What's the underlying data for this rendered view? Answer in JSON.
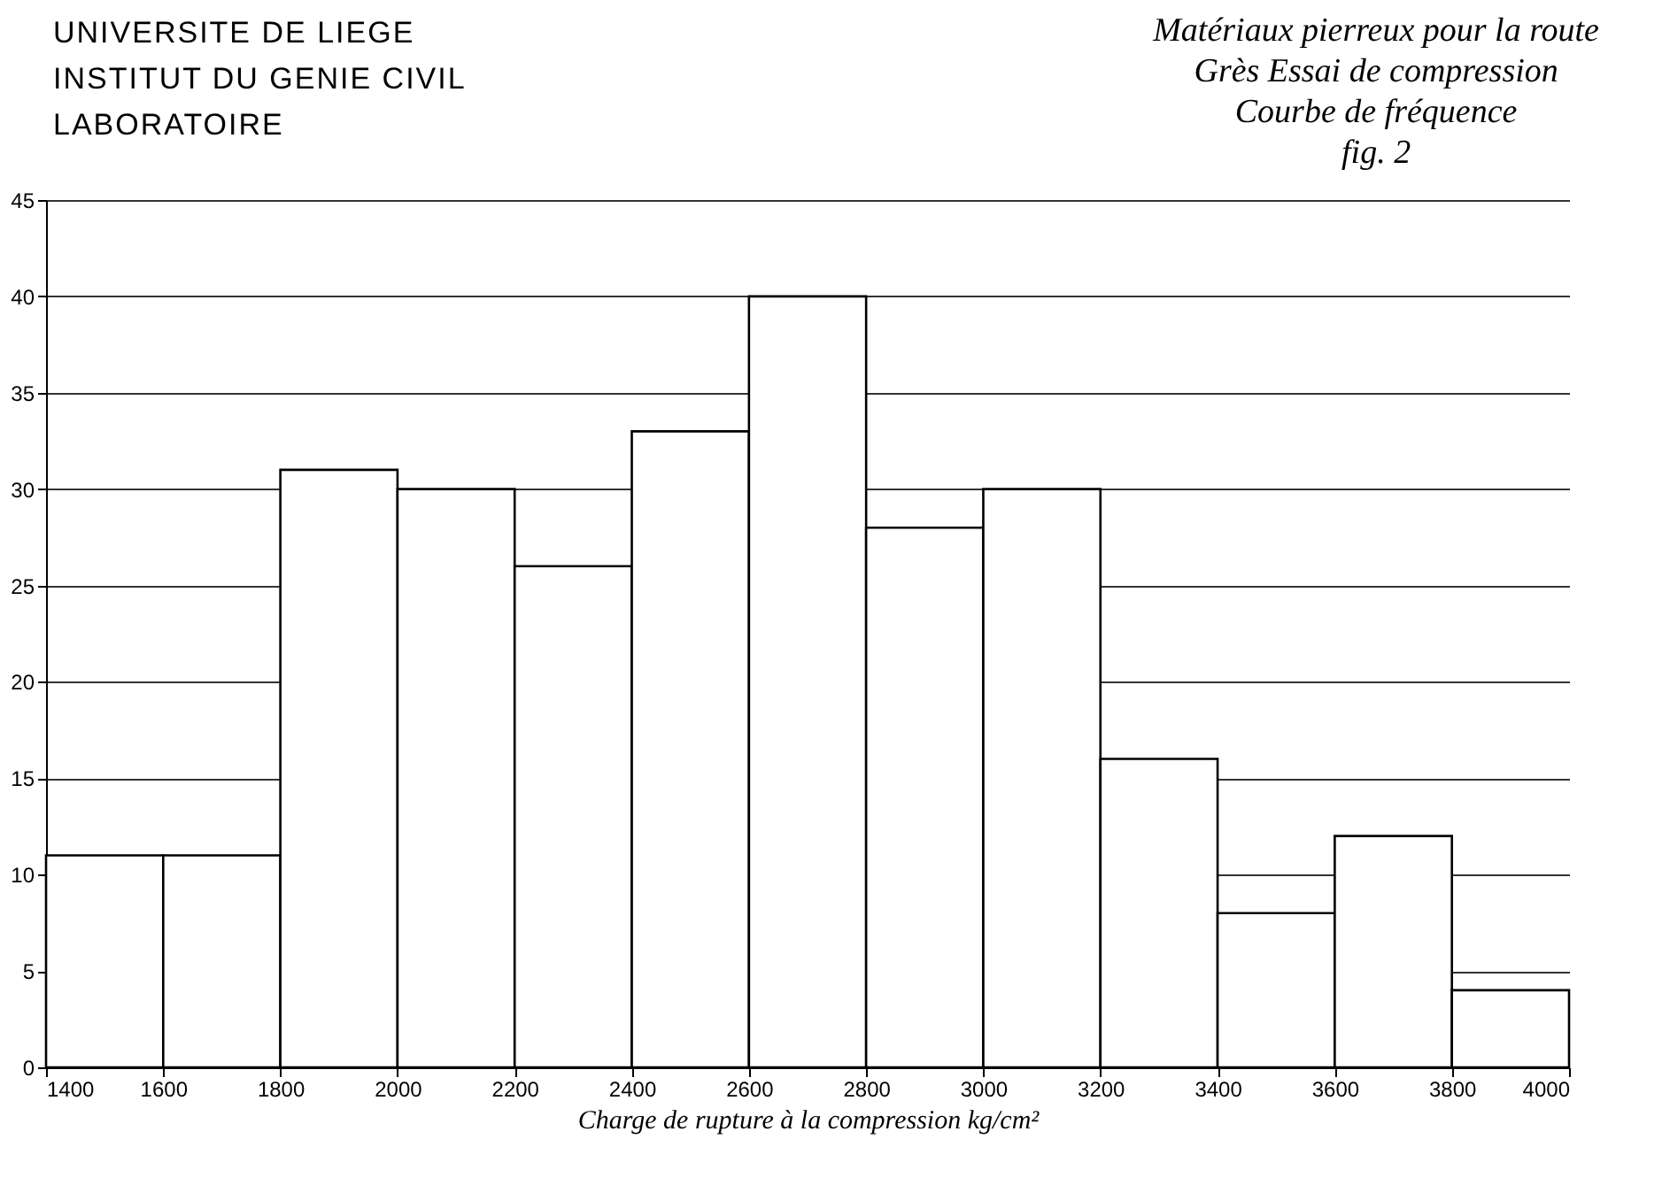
{
  "chart_data": {
    "type": "histogram",
    "title": "Matériaux pierreux pour la route",
    "subtitle": "Grès Essai de compression",
    "annotations": [
      "UNIVERSITE DE LIEGE",
      "INSTITUT DU GENIE CIVIL",
      "LABORATOIRE",
      "Courbe de fréquence",
      "fig. 2"
    ],
    "xlabel": "Charge de rupture à la compression kg/cm²",
    "bins": [
      1400,
      1600,
      1800,
      2000,
      2200,
      2400,
      2600,
      2800,
      3000,
      3200,
      3400,
      3600,
      3800,
      4000
    ],
    "values": [
      11,
      11,
      31,
      30,
      26,
      33,
      40,
      28,
      30,
      16,
      8,
      12,
      4
    ],
    "color": "#ffffff",
    "xlim": [
      1400,
      4000
    ],
    "xticks": [
      1400,
      1600,
      1800,
      2000,
      2200,
      2400,
      2600,
      2800,
      3000,
      3200,
      3400,
      3600,
      3800,
      4000
    ],
    "ylim": [
      0,
      45
    ],
    "yticks": [
      0,
      5,
      10,
      15,
      20,
      25,
      30,
      35,
      40,
      45
    ],
    "grid": "y"
  }
}
